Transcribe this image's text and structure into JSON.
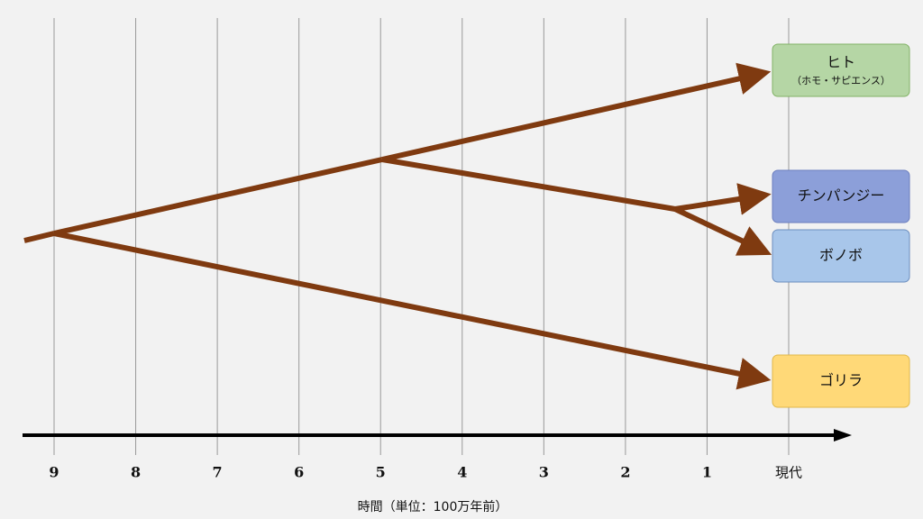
{
  "timeline": {
    "ticks": [
      "9",
      "8",
      "7",
      "6",
      "5",
      "4",
      "3",
      "2",
      "1",
      "現代"
    ],
    "label": "時間（単位：100万年前）"
  },
  "nodes": [
    {
      "label": "ヒト",
      "sublabel": "（ホモ・サピエンス）"
    },
    {
      "label": "チンパンジー"
    },
    {
      "label": "ボノボ"
    },
    {
      "label": "ゴリラ"
    }
  ]
}
